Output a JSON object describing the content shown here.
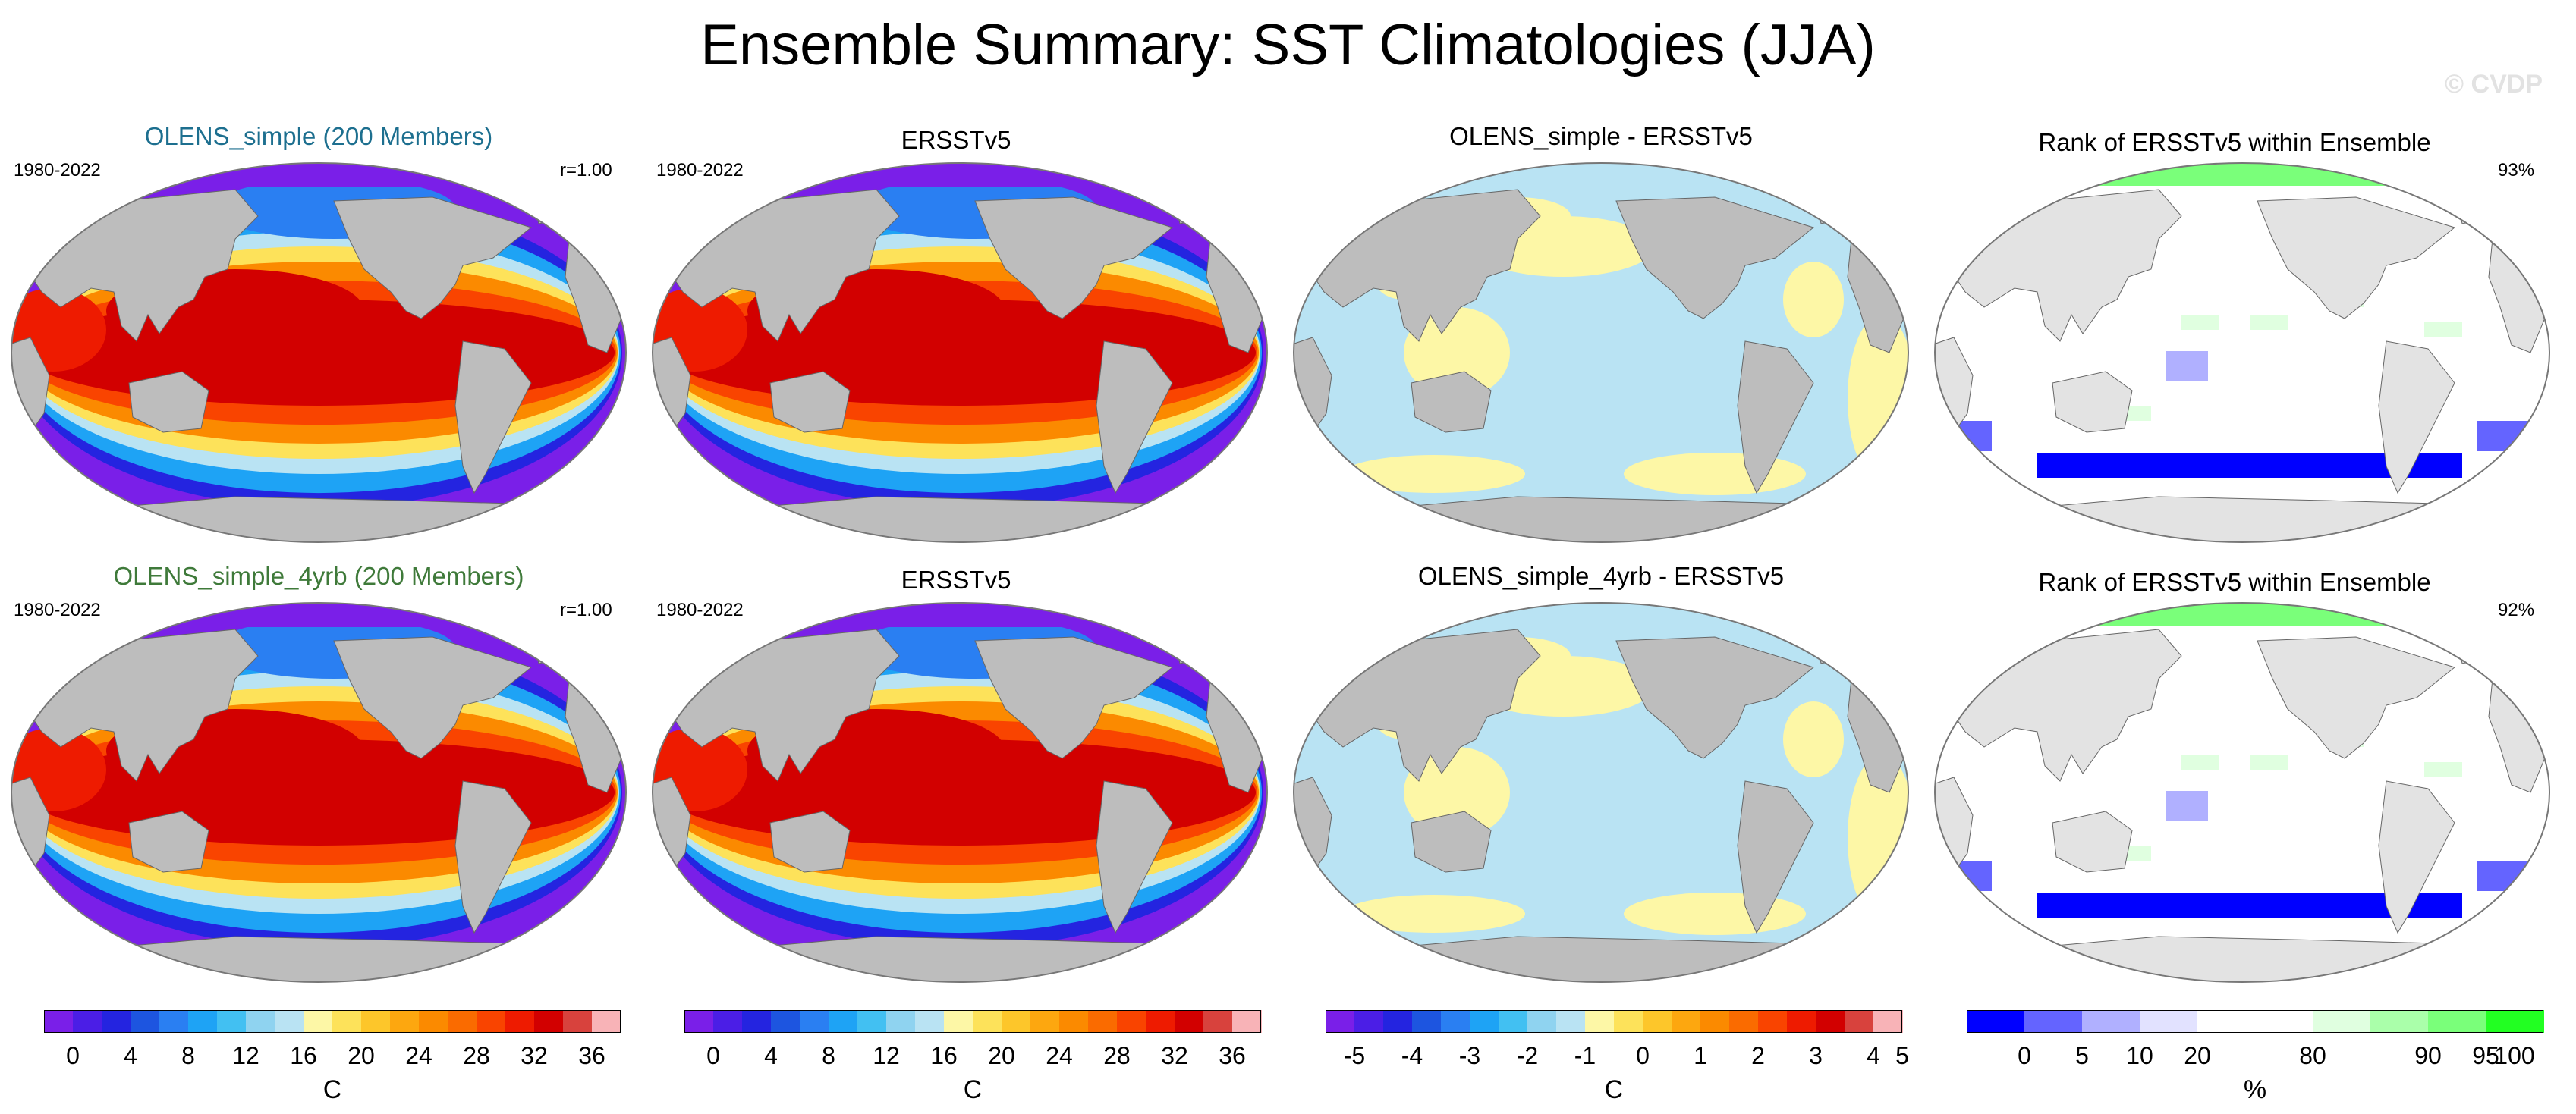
{
  "title": "Ensemble Summary: SST Climatologies (JJA)",
  "watermark": "© CVDP",
  "chart_data": [
    {
      "type": "heatmap",
      "panel": "r1c1",
      "title": "OLENS_simple (200 Members)",
      "title_color": "#1d6f8f",
      "left_label": "1980-2022",
      "right_label": "r=1.00",
      "field": "sst",
      "units": "C"
    },
    {
      "type": "heatmap",
      "panel": "r1c2",
      "title": "ERSSTv5",
      "title_color": "#000000",
      "left_label": "1980-2022",
      "right_label": "",
      "field": "sst",
      "units": "C"
    },
    {
      "type": "heatmap",
      "panel": "r1c3",
      "title": "OLENS_simple - ERSSTv5",
      "title_color": "#000000",
      "left_label": "",
      "right_label": "",
      "field": "diff",
      "units": "C"
    },
    {
      "type": "heatmap",
      "panel": "r1c4",
      "title": "Rank of ERSSTv5 within Ensemble",
      "title_color": "#000000",
      "left_label": "",
      "right_label": "93%",
      "field": "rank",
      "units": "%"
    },
    {
      "type": "heatmap",
      "panel": "r2c1",
      "title": "OLENS_simple_4yrb (200 Members)",
      "title_color": "#3f7a3a",
      "left_label": "1980-2022",
      "right_label": "r=1.00",
      "field": "sst",
      "units": "C"
    },
    {
      "type": "heatmap",
      "panel": "r2c2",
      "title": "ERSSTv5",
      "title_color": "#000000",
      "left_label": "1980-2022",
      "right_label": "",
      "field": "sst",
      "units": "C"
    },
    {
      "type": "heatmap",
      "panel": "r2c3",
      "title": "OLENS_simple_4yrb - ERSSTv5",
      "title_color": "#000000",
      "left_label": "",
      "right_label": "",
      "field": "diff",
      "units": "C"
    },
    {
      "type": "heatmap",
      "panel": "r2c4",
      "title": "Rank of ERSSTv5 within Ensemble",
      "title_color": "#000000",
      "left_label": "",
      "right_label": "92%",
      "field": "rank",
      "units": "%"
    }
  ],
  "colorbars": [
    {
      "unit": "C",
      "ticks": [
        "0",
        "4",
        "8",
        "12",
        "16",
        "20",
        "24",
        "28",
        "32",
        "36"
      ],
      "colors": [
        "#7a1fe8",
        "#4b1ee6",
        "#2424e0",
        "#1d55e0",
        "#2a7ff2",
        "#1ea3f5",
        "#42c0f2",
        "#8fd3f0",
        "#b9e3f3",
        "#fdf7a6",
        "#fde25a",
        "#fdc62a",
        "#fda70f",
        "#fb8a00",
        "#fa6b00",
        "#f94400",
        "#ee1b00",
        "#d20000",
        "#d8423d",
        "#f8b3b7"
      ]
    },
    {
      "unit": "C",
      "ticks": [
        "0",
        "4",
        "8",
        "12",
        "16",
        "20",
        "24",
        "28",
        "32",
        "36"
      ],
      "colors": [
        "#7a1fe8",
        "#4b1ee6",
        "#2424e0",
        "#1d55e0",
        "#2a7ff2",
        "#1ea3f5",
        "#42c0f2",
        "#8fd3f0",
        "#b9e3f3",
        "#fdf7a6",
        "#fde25a",
        "#fdc62a",
        "#fda70f",
        "#fb8a00",
        "#fa6b00",
        "#f94400",
        "#ee1b00",
        "#d20000",
        "#d8423d",
        "#f8b3b7"
      ]
    },
    {
      "unit": "C",
      "ticks": [
        "-5",
        "-4",
        "-3",
        "-2",
        "-1",
        "0",
        "1",
        "2",
        "3",
        "4",
        "5"
      ],
      "colors": [
        "#7a1fe8",
        "#4b1ee6",
        "#2424e0",
        "#1d55e0",
        "#2a7ff2",
        "#1ea3f5",
        "#42c0f2",
        "#8fd3f0",
        "#b9e3f3",
        "#fdf7a6",
        "#fde25a",
        "#fdc62a",
        "#fda70f",
        "#fb8a00",
        "#fa6b00",
        "#f94400",
        "#ee1b00",
        "#d20000",
        "#d8423d",
        "#f8b3b7"
      ]
    },
    {
      "unit": "%",
      "ticks": [
        "0",
        "5",
        "10",
        "20",
        "80",
        "90",
        "95",
        "100"
      ],
      "colors": [
        "#0000ff",
        "#6464ff",
        "#b0b0ff",
        "#e2e2ff",
        "#ffffff",
        "#ffffff",
        "#e0ffe0",
        "#aaffaa",
        "#7aff7a",
        "#22ff22"
      ]
    }
  ]
}
